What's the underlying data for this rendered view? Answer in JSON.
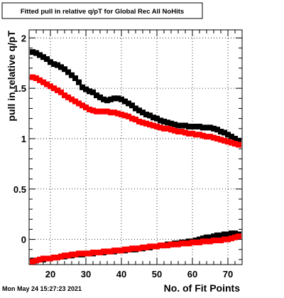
{
  "chart_data": {
    "type": "scatter",
    "title": "Fitted pull in relative q/pT for Global Rec All NoHits",
    "xlabel": "No. of Fit Points",
    "ylabel": "pull in relative q/pT",
    "xlim": [
      14,
      74
    ],
    "ylim": [
      -0.25,
      2.08
    ],
    "x_ticks": [
      20,
      30,
      40,
      50,
      60,
      70
    ],
    "y_ticks": [
      0,
      0.5,
      1,
      1.5,
      2
    ],
    "x_tick_labels": [
      "20",
      "30",
      "40",
      "50",
      "60",
      "70"
    ],
    "y_tick_labels": [
      "0",
      "0.5",
      "1",
      "1.5",
      "2"
    ],
    "grid": true,
    "legend": "none",
    "timestamp": "Mon May 24 15:27:23 2021",
    "series": [
      {
        "color": "#000000",
        "marker": "square",
        "x": [
          15,
          16,
          17,
          18,
          19,
          20,
          21,
          22,
          23,
          24,
          25,
          26,
          27,
          28,
          29,
          30,
          31,
          32,
          33,
          34,
          35,
          36,
          37,
          38,
          39,
          40,
          41,
          42,
          43,
          44,
          45,
          46,
          47,
          48,
          49,
          50,
          51,
          52,
          53,
          54,
          55,
          56,
          57,
          58,
          59,
          60,
          61,
          62,
          63,
          64,
          65,
          66,
          67,
          68,
          69,
          70,
          71,
          72,
          73
        ],
        "y": [
          1.86,
          1.85,
          1.83,
          1.81,
          1.79,
          1.76,
          1.74,
          1.73,
          1.71,
          1.69,
          1.66,
          1.63,
          1.6,
          1.56,
          1.51,
          1.49,
          1.47,
          1.46,
          1.43,
          1.41,
          1.39,
          1.38,
          1.39,
          1.4,
          1.4,
          1.39,
          1.37,
          1.35,
          1.33,
          1.3,
          1.28,
          1.26,
          1.24,
          1.23,
          1.21,
          1.2,
          1.18,
          1.17,
          1.16,
          1.15,
          1.14,
          1.13,
          1.13,
          1.13,
          1.12,
          1.12,
          1.12,
          1.12,
          1.11,
          1.11,
          1.11,
          1.1,
          1.09,
          1.07,
          1.06,
          1.04,
          1.02,
          1.0,
          0.98
        ]
      },
      {
        "color": "#ff0000",
        "marker": "square",
        "x": [
          15,
          16,
          17,
          18,
          19,
          20,
          21,
          22,
          23,
          24,
          25,
          26,
          27,
          28,
          29,
          30,
          31,
          32,
          33,
          34,
          35,
          36,
          37,
          38,
          39,
          40,
          41,
          42,
          43,
          44,
          45,
          46,
          47,
          48,
          49,
          50,
          51,
          52,
          53,
          54,
          55,
          56,
          57,
          58,
          59,
          60,
          61,
          62,
          63,
          64,
          65,
          66,
          67,
          68,
          69,
          70,
          71,
          72,
          73
        ],
        "y": [
          1.61,
          1.6,
          1.58,
          1.56,
          1.54,
          1.52,
          1.5,
          1.48,
          1.46,
          1.43,
          1.41,
          1.39,
          1.37,
          1.35,
          1.33,
          1.31,
          1.29,
          1.28,
          1.27,
          1.27,
          1.27,
          1.27,
          1.26,
          1.26,
          1.25,
          1.24,
          1.23,
          1.22,
          1.2,
          1.19,
          1.17,
          1.16,
          1.15,
          1.14,
          1.13,
          1.12,
          1.11,
          1.1,
          1.1,
          1.09,
          1.08,
          1.07,
          1.07,
          1.06,
          1.05,
          1.05,
          1.04,
          1.04,
          1.03,
          1.02,
          1.02,
          1.01,
          1.0,
          0.99,
          0.98,
          0.97,
          0.96,
          0.95,
          0.94
        ]
      },
      {
        "color": "#000000",
        "marker": "square",
        "x": [
          15,
          16,
          17,
          18,
          19,
          20,
          21,
          22,
          23,
          24,
          25,
          26,
          27,
          28,
          29,
          30,
          31,
          32,
          33,
          34,
          35,
          36,
          37,
          38,
          39,
          40,
          41,
          42,
          43,
          44,
          45,
          46,
          47,
          48,
          49,
          50,
          51,
          52,
          53,
          54,
          55,
          56,
          57,
          58,
          59,
          60,
          61,
          62,
          63,
          64,
          65,
          66,
          67,
          68,
          69,
          70,
          71,
          72,
          73
        ],
        "y": [
          -0.21,
          -0.21,
          -0.2,
          -0.2,
          -0.19,
          -0.19,
          -0.18,
          -0.18,
          -0.17,
          -0.17,
          -0.16,
          -0.16,
          -0.15,
          -0.15,
          -0.15,
          -0.14,
          -0.14,
          -0.14,
          -0.13,
          -0.13,
          -0.13,
          -0.12,
          -0.12,
          -0.12,
          -0.11,
          -0.11,
          -0.11,
          -0.1,
          -0.1,
          -0.1,
          -0.09,
          -0.09,
          -0.08,
          -0.08,
          -0.07,
          -0.07,
          -0.06,
          -0.06,
          -0.05,
          -0.05,
          -0.04,
          -0.04,
          -0.03,
          -0.03,
          -0.02,
          -0.02,
          -0.01,
          0.0,
          0.01,
          0.02,
          0.02,
          0.03,
          0.04,
          0.04,
          0.05,
          0.05,
          0.06,
          0.06,
          0.05
        ]
      },
      {
        "color": "#ff0000",
        "marker": "square",
        "x": [
          15,
          16,
          17,
          18,
          19,
          20,
          21,
          22,
          23,
          24,
          25,
          26,
          27,
          28,
          29,
          30,
          31,
          32,
          33,
          34,
          35,
          36,
          37,
          38,
          39,
          40,
          41,
          42,
          43,
          44,
          45,
          46,
          47,
          48,
          49,
          50,
          51,
          52,
          53,
          54,
          55,
          56,
          57,
          58,
          59,
          60,
          61,
          62,
          63,
          64,
          65,
          66,
          67,
          68,
          69,
          70,
          71,
          72,
          73
        ],
        "y": [
          -0.22,
          -0.21,
          -0.2,
          -0.19,
          -0.19,
          -0.19,
          -0.18,
          -0.18,
          -0.17,
          -0.16,
          -0.16,
          -0.15,
          -0.15,
          -0.14,
          -0.14,
          -0.14,
          -0.14,
          -0.13,
          -0.13,
          -0.13,
          -0.12,
          -0.12,
          -0.12,
          -0.11,
          -0.11,
          -0.11,
          -0.1,
          -0.1,
          -0.09,
          -0.09,
          -0.09,
          -0.08,
          -0.08,
          -0.07,
          -0.07,
          -0.07,
          -0.06,
          -0.06,
          -0.06,
          -0.05,
          -0.05,
          -0.05,
          -0.04,
          -0.04,
          -0.04,
          -0.03,
          -0.03,
          -0.03,
          -0.02,
          -0.02,
          -0.02,
          -0.01,
          -0.01,
          -0.01,
          0.0,
          0.0,
          0.01,
          0.02,
          0.03
        ]
      }
    ]
  }
}
